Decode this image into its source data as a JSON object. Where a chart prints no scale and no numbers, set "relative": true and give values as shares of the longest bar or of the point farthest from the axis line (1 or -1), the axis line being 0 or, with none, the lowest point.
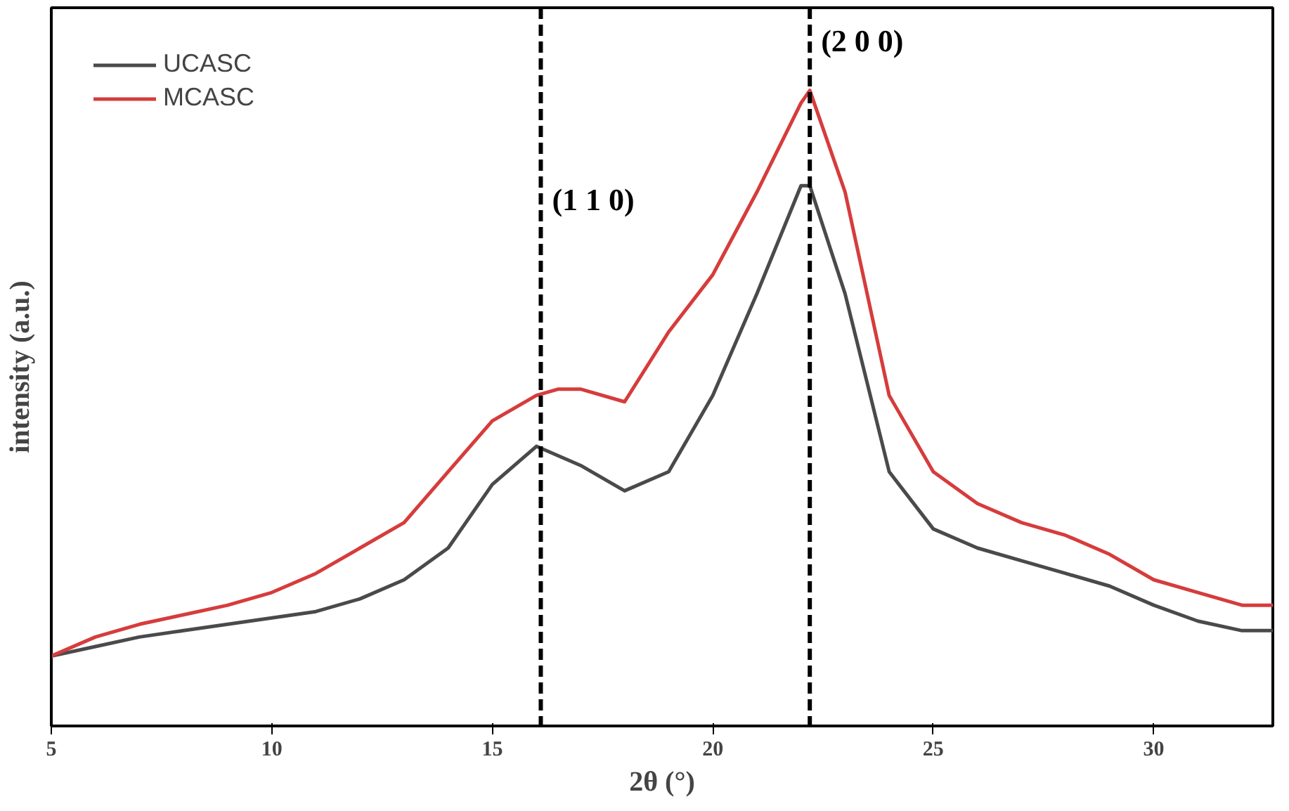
{
  "chart_data": {
    "type": "line",
    "relative": true,
    "xlabel": "2θ (°)",
    "ylabel": "intensity (a.u.)",
    "xlim": [
      5,
      32.7
    ],
    "xticks": [
      5,
      10,
      15,
      20,
      25,
      30
    ],
    "tick_labels": "x",
    "legend": "top left",
    "grid": false,
    "line_style": "solid",
    "marker": "none",
    "series": [
      {
        "name": "UCASC",
        "color": "#4a4a4a",
        "x": [
          5,
          6,
          7,
          8,
          9,
          10,
          11,
          12,
          13,
          14,
          15,
          16,
          17,
          18,
          19,
          20,
          21,
          22,
          22.2,
          23,
          24,
          25,
          26,
          27,
          28,
          29,
          30,
          31,
          32,
          32.7
        ],
        "values": [
          0.11,
          0.125,
          0.14,
          0.15,
          0.16,
          0.17,
          0.18,
          0.2,
          0.23,
          0.28,
          0.38,
          0.44,
          0.41,
          0.37,
          0.4,
          0.52,
          0.68,
          0.85,
          0.85,
          0.68,
          0.4,
          0.31,
          0.28,
          0.26,
          0.24,
          0.22,
          0.19,
          0.165,
          0.15,
          0.15
        ]
      },
      {
        "name": "MCASC",
        "color": "#d63c3c",
        "x": [
          5,
          6,
          7,
          8,
          9,
          10,
          11,
          12,
          13,
          14,
          15,
          16,
          16.5,
          17,
          18,
          19,
          20,
          21,
          22,
          22.2,
          23,
          24,
          25,
          26,
          27,
          28,
          29,
          30,
          31,
          32,
          32.7
        ],
        "values": [
          0.11,
          0.14,
          0.16,
          0.175,
          0.19,
          0.21,
          0.24,
          0.28,
          0.32,
          0.4,
          0.48,
          0.52,
          0.53,
          0.53,
          0.51,
          0.62,
          0.71,
          0.84,
          0.98,
          1.0,
          0.84,
          0.52,
          0.4,
          0.35,
          0.32,
          0.3,
          0.27,
          0.23,
          0.21,
          0.19,
          0.19
        ]
      }
    ],
    "ref_lines": [
      {
        "axis": "x",
        "value": 16.1,
        "color": "#000000",
        "line_style": "dashed"
      },
      {
        "axis": "x",
        "value": 22.2,
        "color": "#000000",
        "line_style": "dashed"
      }
    ],
    "annotations": [
      {
        "text": "(1 1 0)",
        "x": 16.1,
        "y": 0.8
      },
      {
        "text": "(2 0 0)",
        "x": 22.2,
        "y": 1.05
      }
    ]
  }
}
